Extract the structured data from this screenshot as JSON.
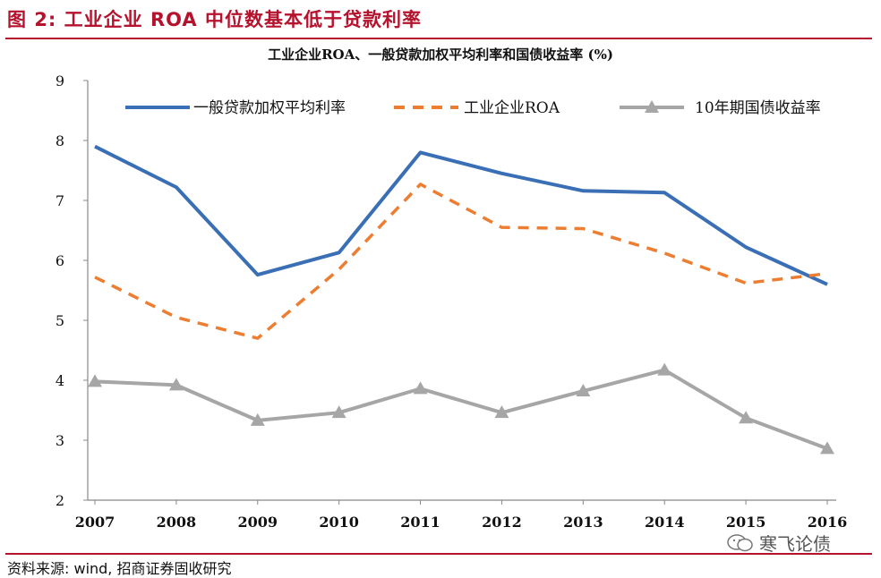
{
  "figure_title": "图 2: 工业企业 ROA 中位数基本低于贷款利率",
  "source": "资料来源: wind, 招商证券固收研究",
  "watermark": "寒飞论债",
  "colors": {
    "accent": "#b5122d",
    "loan": "#3a6fb5",
    "roa": "#ed7d31",
    "bond": "#a6a6a6"
  },
  "chart_data": {
    "type": "line",
    "title": "工业企业ROA、一般贷款加权平均利率和国债收益率 (%)",
    "xlabel": "",
    "ylabel": "",
    "ylim": [
      2,
      9
    ],
    "yticks": [
      2,
      3,
      4,
      5,
      6,
      7,
      8,
      9
    ],
    "x": [
      "2007",
      "2008",
      "2009",
      "2010",
      "2011",
      "2012",
      "2013",
      "2014",
      "2015",
      "2016"
    ],
    "legend_position": "top",
    "series": [
      {
        "name": "一般贷款加权平均利率",
        "style": "solid",
        "color": "#3a6fb5",
        "values": [
          7.9,
          7.22,
          5.76,
          6.13,
          7.8,
          7.45,
          7.16,
          7.13,
          6.22,
          5.6
        ]
      },
      {
        "name": "工业企业ROA",
        "style": "dashed",
        "color": "#ed7d31",
        "values": [
          5.72,
          5.05,
          4.7,
          5.85,
          7.27,
          6.55,
          6.53,
          6.12,
          5.62,
          5.78
        ]
      },
      {
        "name": "10年期国债收益率",
        "style": "triangle",
        "color": "#a6a6a6",
        "values": [
          3.98,
          3.92,
          3.33,
          3.46,
          3.86,
          3.46,
          3.82,
          4.17,
          3.37,
          2.86
        ]
      }
    ]
  }
}
